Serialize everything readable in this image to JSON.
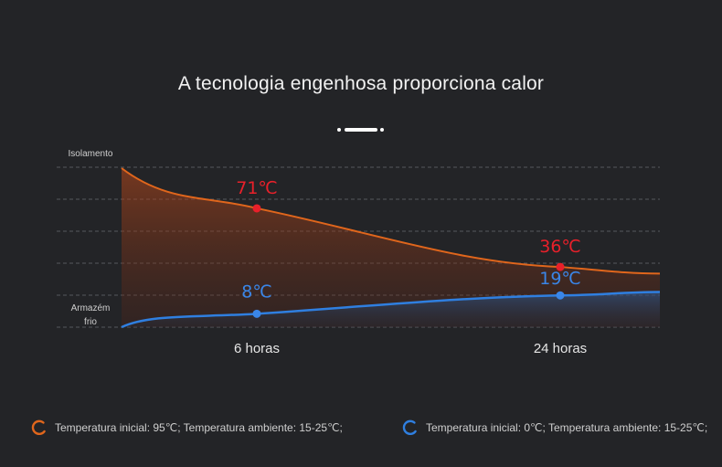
{
  "title": "A tecnologia engenhosa proporciona calor",
  "chart_data": {
    "type": "line",
    "x": [
      "0",
      "6 horas",
      "24 horas",
      "end"
    ],
    "x_tick_labels": [
      "6 horas",
      "24 horas"
    ],
    "y_labels": {
      "top": "Isolamento",
      "bottom_line1": "Armazém",
      "bottom_line2": "frio"
    },
    "series": [
      {
        "points_c": [
          95,
          71,
          36,
          32
        ],
        "labels": [
          "71℃",
          "36℃"
        ],
        "color": "#e0661c",
        "label_color": "#e8202a"
      },
      {
        "points_c": [
          0,
          8,
          19,
          21
        ],
        "labels": [
          "8℃",
          "19℃"
        ],
        "color": "#2f7fe0",
        "label_color": "#3a86e8"
      }
    ],
    "ylim": [
      0,
      95
    ],
    "grid": true
  },
  "legend": [
    {
      "text": "Temperatura inicial: 95℃; Temperatura ambiente: 15-25℃;",
      "color": "#e0661c"
    },
    {
      "text": "Temperatura inicial: 0℃; Temperatura ambiente: 15-25℃;",
      "color": "#2f7fe0"
    }
  ]
}
